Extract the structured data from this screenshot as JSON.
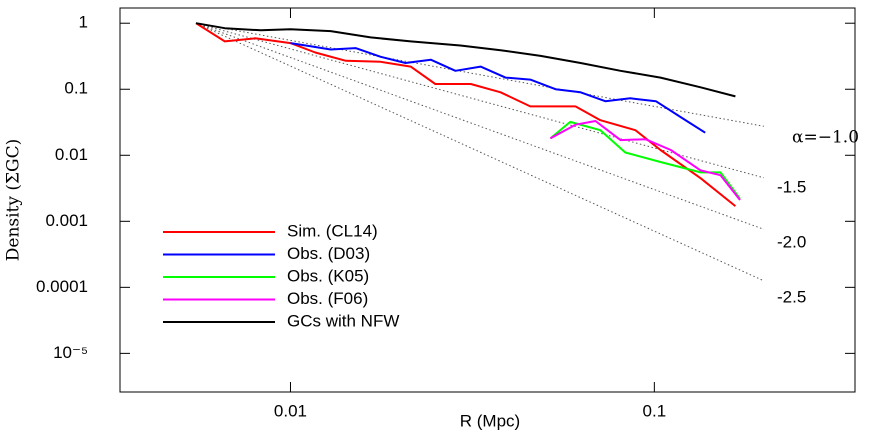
{
  "chart_data": {
    "type": "line",
    "x_label": "R (Mpc)",
    "y_label": "Density (ΣGC)",
    "log_x": true,
    "log_y": true,
    "xlim": [
      0.0034,
      0.356
    ],
    "ylim": [
      2.6e-06,
      1.7
    ],
    "xticks": [
      0.01,
      0.1
    ],
    "yticks": [
      1,
      0.1,
      0.01,
      0.001,
      0.0001,
      {
        "value": 1e-05,
        "label": "10⁻⁵"
      }
    ],
    "series": [
      {
        "name": "Sim. (CL14)",
        "color": "#ff0000",
        "x": [
          0.0055,
          0.0066,
          0.008,
          0.01,
          0.0117,
          0.0142,
          0.0177,
          0.0214,
          0.025,
          0.0313,
          0.0378,
          0.0456,
          0.0607,
          0.0711,
          0.0887,
          0.104,
          0.134,
          0.167
        ],
        "values": [
          1.0,
          0.53,
          0.59,
          0.5,
          0.36,
          0.27,
          0.26,
          0.22,
          0.12,
          0.12,
          0.09,
          0.055,
          0.055,
          0.034,
          0.024,
          0.012,
          0.0045,
          0.0017
        ]
      },
      {
        "name": "Obs. (D03)",
        "color": "#0000ff",
        "x": [
          0.01,
          0.0113,
          0.0129,
          0.0151,
          0.0177,
          0.0207,
          0.0243,
          0.0284,
          0.0333,
          0.039,
          0.0456,
          0.0535,
          0.0627,
          0.0733,
          0.0859,
          0.101,
          0.118,
          0.138
        ],
        "values": [
          0.5,
          0.45,
          0.4,
          0.42,
          0.31,
          0.25,
          0.28,
          0.19,
          0.22,
          0.15,
          0.14,
          0.1,
          0.09,
          0.066,
          0.073,
          0.066,
          0.038,
          0.022
        ]
      },
      {
        "name": "Obs. (K05)",
        "color": "#00ff00",
        "x": [
          0.0518,
          0.0587,
          0.0711,
          0.0832,
          0.104,
          0.134,
          0.152,
          0.172
        ],
        "values": [
          0.018,
          0.032,
          0.024,
          0.011,
          0.0079,
          0.0055,
          0.0055,
          0.0022
        ]
      },
      {
        "name": "Obs. (F06)",
        "color": "#ff00ff",
        "x": [
          0.0518,
          0.0607,
          0.0689,
          0.0807,
          0.0945,
          0.111,
          0.134,
          0.152,
          0.172
        ],
        "values": [
          0.018,
          0.029,
          0.033,
          0.017,
          0.0175,
          0.012,
          0.0059,
          0.005,
          0.0021
        ]
      },
      {
        "name": "GCs with NFW",
        "color": "#000000",
        "x": [
          0.0055,
          0.0066,
          0.0083,
          0.01,
          0.0129,
          0.0166,
          0.0214,
          0.0293,
          0.0378,
          0.0487,
          0.0627,
          0.0807,
          0.104,
          0.134,
          0.167
        ],
        "values": [
          1.0,
          0.84,
          0.78,
          0.81,
          0.76,
          0.61,
          0.53,
          0.46,
          0.39,
          0.32,
          0.25,
          0.19,
          0.15,
          0.107,
          0.078
        ]
      }
    ],
    "reference_lines": {
      "x0": 0.0055,
      "x1": 0.2,
      "y0": 1,
      "slopes": [
        -1.0,
        -1.5,
        -2.0,
        -2.5
      ],
      "labels": [
        "α=−1.0",
        "-1.5",
        "-2.0",
        "-2.5"
      ]
    }
  }
}
